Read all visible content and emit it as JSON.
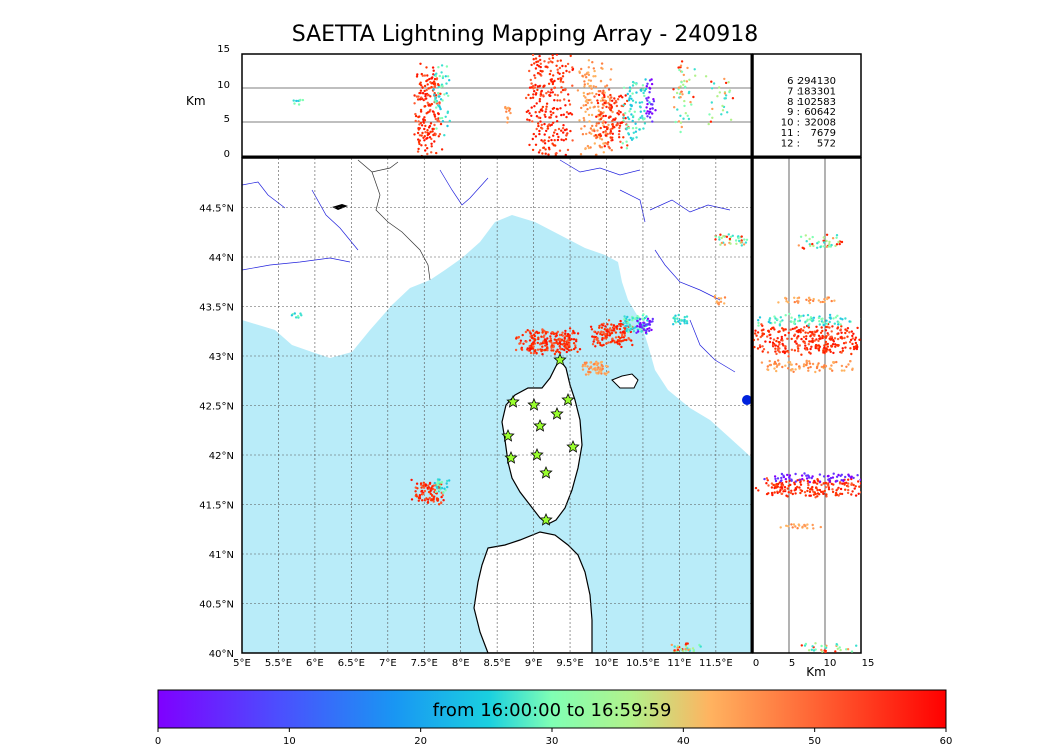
{
  "title": "SAETTA Lightning Mapping Array - 240918",
  "alt_panel": {
    "ylabel": "Km",
    "yticks": [
      "0",
      "5",
      "10",
      "15"
    ]
  },
  "side_panel": {
    "xlabel": "Km",
    "xticks": [
      "0",
      "5",
      "10",
      "15"
    ]
  },
  "map": {
    "lon_ticks": [
      "5°E",
      "5.5°E",
      "6°E",
      "6.5°E",
      "7°E",
      "7.5°E",
      "8°E",
      "8.5°E",
      "9°E",
      "9.5°E",
      "10°E",
      "10.5°E",
      "11°E",
      "11.5°E"
    ],
    "lat_ticks": [
      "40°N",
      "40.5°N",
      "41°N",
      "41.5°N",
      "42°N",
      "42.5°N",
      "43°N",
      "43.5°N",
      "44°N",
      "44.5°N"
    ]
  },
  "stats": [
    {
      "label": "6",
      "value": "294130",
      "color": "#000000"
    },
    {
      "label": "7",
      "value": "183301",
      "color": "#ff0000"
    },
    {
      "label": "8",
      "value": "102583",
      "color": "#000000"
    },
    {
      "label": "9",
      "value": "60642",
      "color": "#000000"
    },
    {
      "label": "10",
      "value": "32008",
      "color": "#000000"
    },
    {
      "label": "11",
      "value": "7679",
      "color": "#000000"
    },
    {
      "label": "12",
      "value": "572",
      "color": "#000000"
    }
  ],
  "colorbar": {
    "label": "from 16:00:00 to 16:59:59",
    "ticks": [
      "0",
      "10",
      "20",
      "30",
      "40",
      "50",
      "60"
    ]
  },
  "colors": {
    "sea": "#b9ecf9",
    "river": "#2222dd",
    "star": "#9aff2e",
    "grid": "#555555"
  }
}
